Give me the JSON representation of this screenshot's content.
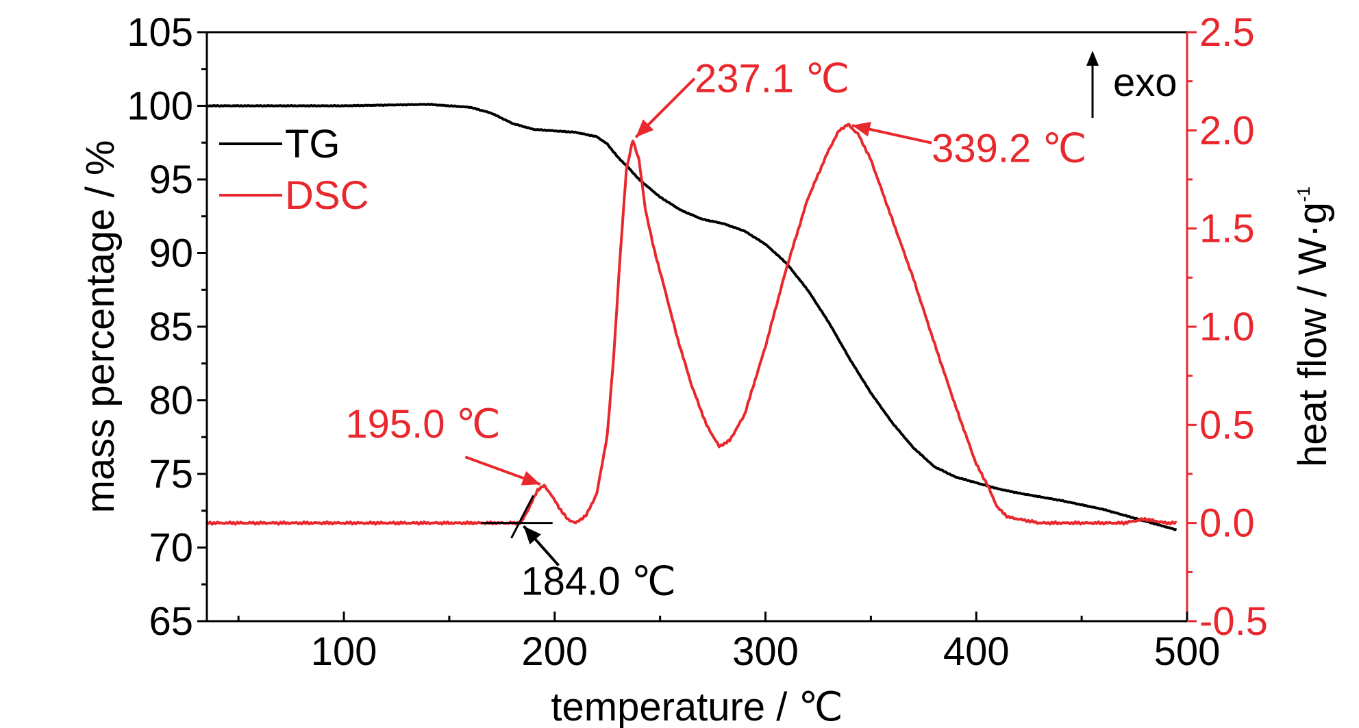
{
  "chart_data": {
    "type": "line",
    "x_axis": {
      "label": "temperature / ℃",
      "range": [
        35,
        500
      ],
      "ticks": [
        100,
        200,
        300,
        400,
        500
      ],
      "minor_ticks": [
        50,
        150,
        250,
        350,
        450
      ]
    },
    "y_axis_left": {
      "label": "mass percentage / %",
      "range": [
        65,
        105
      ],
      "ticks": [
        65,
        70,
        75,
        80,
        85,
        90,
        95,
        100,
        105
      ]
    },
    "y_axis_right": {
      "label": "heat flow / W·g",
      "label_superscript": "-1",
      "range": [
        -0.5,
        2.5
      ],
      "ticks": [
        -0.5,
        0.0,
        0.5,
        1.0,
        1.5,
        2.0,
        2.5
      ],
      "tick_labels": [
        "-0.5",
        "0.0",
        "0.5",
        "1.0",
        "1.5",
        "2.0",
        "2.5"
      ],
      "color": "#e8282d"
    },
    "legend": {
      "placement": "top-left",
      "items": [
        {
          "name": "TG",
          "color": "#000000"
        },
        {
          "name": "DSC",
          "color": "#e8282d"
        }
      ]
    },
    "exo_label": "exo",
    "series": [
      {
        "name": "TG",
        "axis": "left",
        "color": "#000000",
        "x": [
          35,
          60,
          100,
          140,
          160,
          170,
          180,
          190,
          210,
          220,
          225,
          230,
          235,
          240,
          250,
          260,
          270,
          280,
          290,
          300,
          310,
          320,
          330,
          340,
          350,
          360,
          370,
          380,
          390,
          400,
          410,
          420,
          440,
          460,
          480,
          495
        ],
        "y": [
          100.0,
          100.0,
          100.0,
          100.1,
          99.9,
          99.5,
          98.8,
          98.4,
          98.2,
          97.9,
          97.4,
          96.5,
          95.8,
          95.0,
          93.8,
          92.9,
          92.3,
          92.0,
          91.5,
          90.6,
          89.3,
          87.5,
          85.3,
          82.8,
          80.5,
          78.5,
          76.8,
          75.5,
          74.8,
          74.4,
          74.0,
          73.7,
          73.2,
          72.6,
          71.8,
          71.2
        ]
      },
      {
        "name": "DSC",
        "axis": "right",
        "color": "#e8282d",
        "x": [
          35,
          100,
          150,
          175,
          180,
          184,
          188,
          192,
          195,
          198,
          202,
          206,
          210,
          215,
          220,
          225,
          228,
          231,
          234,
          237.1,
          240,
          243,
          247,
          252,
          258,
          265,
          272,
          278,
          283,
          290,
          300,
          310,
          320,
          330,
          335,
          339.2,
          344,
          350,
          360,
          370,
          380,
          390,
          400,
          405,
          410,
          415,
          420,
          430,
          450,
          470,
          480,
          490,
          495
        ],
        "y": [
          0.0,
          0.0,
          0.0,
          0.0,
          0.0,
          0.0,
          0.08,
          0.17,
          0.19,
          0.15,
          0.08,
          0.02,
          0.0,
          0.04,
          0.15,
          0.45,
          0.85,
          1.35,
          1.8,
          1.95,
          1.85,
          1.6,
          1.4,
          1.2,
          0.95,
          0.7,
          0.5,
          0.39,
          0.42,
          0.55,
          0.9,
          1.3,
          1.65,
          1.9,
          2.0,
          2.03,
          1.98,
          1.85,
          1.55,
          1.25,
          0.92,
          0.6,
          0.3,
          0.2,
          0.08,
          0.03,
          0.02,
          0.0,
          0.0,
          0.0,
          0.02,
          0.0,
          0.0
        ]
      }
    ],
    "annotations": [
      {
        "text": "195.0 ℃",
        "x": 195.0,
        "y": 0.19,
        "axis": "right",
        "color": "#e8282d"
      },
      {
        "text": "237.1 ℃",
        "x": 237.1,
        "y": 1.95,
        "axis": "right",
        "color": "#e8282d"
      },
      {
        "text": "339.2 ℃",
        "x": 339.2,
        "y": 2.03,
        "axis": "right",
        "color": "#e8282d"
      },
      {
        "text": "184.0 ℃",
        "x": 184.0,
        "y": 0.0,
        "axis": "right",
        "color": "#000000"
      }
    ]
  }
}
